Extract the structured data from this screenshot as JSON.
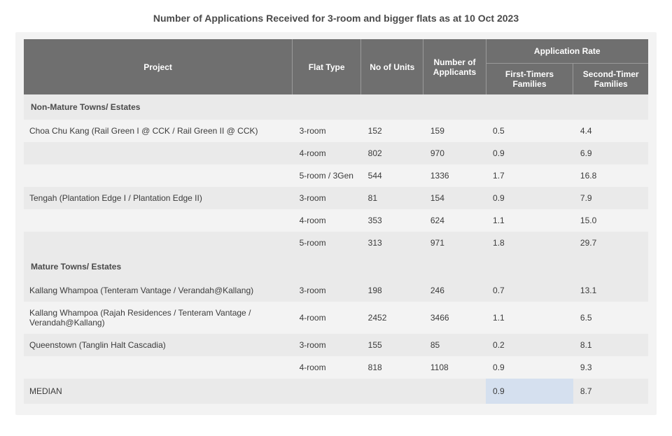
{
  "title": "Number of Applications Received for 3-room and bigger flats as at 10 Oct 2023",
  "columns": {
    "project": "Project",
    "flat_type": "Flat Type",
    "no_of_units": "No of Units",
    "no_of_applicants": "Number of Applicants",
    "app_rate_group": "Application Rate",
    "first_timers": "First-Timers Families",
    "second_timer": "Second-Timer Families"
  },
  "colors": {
    "header_bg": "#6f6f6f",
    "header_text": "#ffffff",
    "card_bg": "#f3f3f3",
    "alt_row_bg": "#eaeaea",
    "text": "#3b3b3b",
    "title_text": "#4a4a4a",
    "highlight_bg": "#d5e0ef",
    "header_border": "#9a9a9a"
  },
  "sections": [
    {
      "label": "Non-Mature Towns/ Estates",
      "rows": [
        {
          "project": "Choa Chu Kang (Rail Green I @ CCK / Rail Green II @ CCK)",
          "flat_type": "3-room",
          "units": "152",
          "applicants": "159",
          "ft": "0.5",
          "st": "4.4",
          "alt": false,
          "show_project": true
        },
        {
          "project": "",
          "flat_type": "4-room",
          "units": "802",
          "applicants": "970",
          "ft": "0.9",
          "st": "6.9",
          "alt": true,
          "show_project": false
        },
        {
          "project": "",
          "flat_type": "5-room / 3Gen",
          "units": "544",
          "applicants": "1336",
          "ft": "1.7",
          "st": "16.8",
          "alt": false,
          "show_project": false
        },
        {
          "project": "Tengah (Plantation Edge I / Plantation Edge II)",
          "flat_type": "3-room",
          "units": "81",
          "applicants": "154",
          "ft": "0.9",
          "st": "7.9",
          "alt": true,
          "show_project": true
        },
        {
          "project": "",
          "flat_type": "4-room",
          "units": "353",
          "applicants": "624",
          "ft": "1.1",
          "st": "15.0",
          "alt": false,
          "show_project": false
        },
        {
          "project": "",
          "flat_type": "5-room",
          "units": "313",
          "applicants": "971",
          "ft": "1.8",
          "st": "29.7",
          "alt": true,
          "show_project": false
        }
      ]
    },
    {
      "label": "Mature Towns/ Estates",
      "rows": [
        {
          "project": "Kallang Whampoa (Tenteram Vantage / Verandah@Kallang)",
          "flat_type": "3-room",
          "units": "198",
          "applicants": "246",
          "ft": "0.7",
          "st": "13.1",
          "alt": true,
          "show_project": true
        },
        {
          "project": "Kallang Whampoa (Rajah Residences / Tenteram Vantage / Verandah@Kallang)",
          "flat_type": "4-room",
          "units": "2452",
          "applicants": "3466",
          "ft": "1.1",
          "st": "6.5",
          "alt": false,
          "show_project": true
        },
        {
          "project": "Queenstown (Tanglin Halt Cascadia)",
          "flat_type": "3-room",
          "units": "155",
          "applicants": "85",
          "ft": "0.2",
          "st": "8.1",
          "alt": true,
          "show_project": true
        },
        {
          "project": "",
          "flat_type": "4-room",
          "units": "818",
          "applicants": "1108",
          "ft": "0.9",
          "st": "9.3",
          "alt": false,
          "show_project": false
        }
      ]
    }
  ],
  "median": {
    "label": "MEDIAN",
    "ft": "0.9",
    "st": "8.7"
  }
}
